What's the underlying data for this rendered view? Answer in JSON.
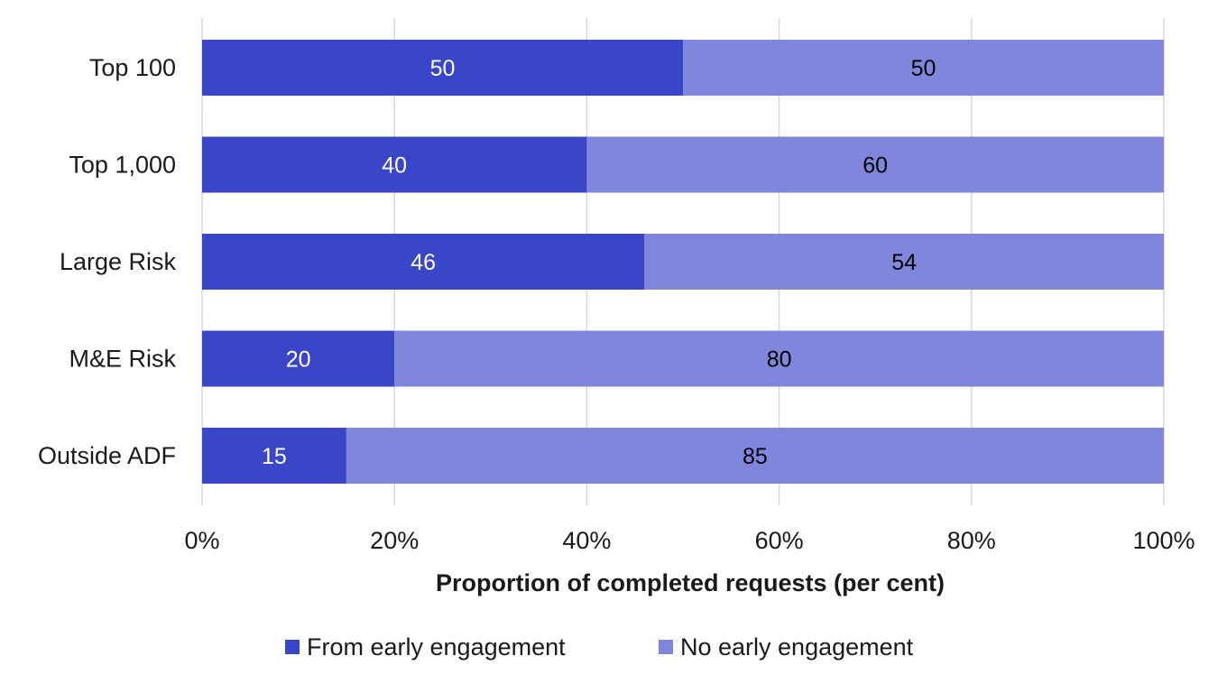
{
  "chart_data": {
    "type": "bar",
    "orientation": "horizontal",
    "stacked": true,
    "categories": [
      "Top 100",
      "Top 1,000",
      "Large Risk",
      "M&E Risk",
      "Outside ADF"
    ],
    "series": [
      {
        "name": "From early engagement",
        "color": "#3a46c8",
        "label_color": "#ffffff",
        "values": [
          50,
          40,
          46,
          20,
          15
        ],
        "labels": [
          "50",
          "40",
          "46",
          "20",
          "15"
        ]
      },
      {
        "name": "No early engagement",
        "color": "#7f86dc",
        "label_color": "#000000",
        "values": [
          50,
          60,
          54,
          80,
          85
        ],
        "labels": [
          "50",
          "60",
          "54",
          "80",
          "85"
        ]
      }
    ],
    "xlim": [
      0,
      100
    ],
    "x_ticks": [
      0,
      20,
      40,
      60,
      80,
      100
    ],
    "x_tick_labels": [
      "0%",
      "20%",
      "40%",
      "60%",
      "80%",
      "100%"
    ],
    "xlabel": "Proportion of completed requests (per cent)",
    "ylabel": "",
    "title": "",
    "grid": "vertical",
    "legend": "bottom"
  }
}
